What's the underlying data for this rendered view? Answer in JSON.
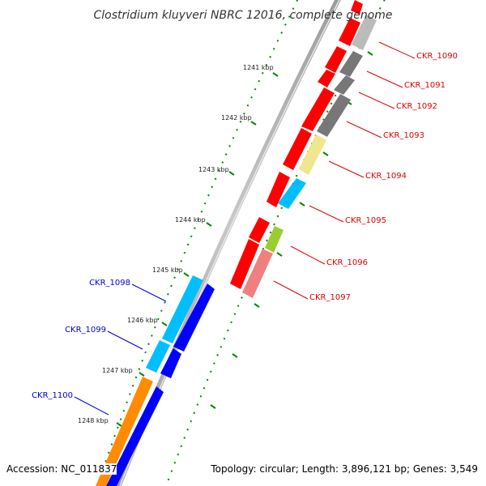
{
  "title": "Clostridium kluyveri NBRC 12016, complete genome",
  "accession": "Accession: NC_011837",
  "topology": "Topology: circular; Length: 3,896,121 bp; Genes: 3,549",
  "colors": {
    "red": "#ff0000",
    "gray": "#777777",
    "light_gray": "#bbbbbb",
    "yellow": "#f0e68c",
    "cyan": "#00bfff",
    "yellow_green": "#9acd32",
    "pink": "#f08080",
    "blue": "#0000ff",
    "orange": "#ff8c00",
    "tick_green": "#008800",
    "label_red": "#e00000",
    "label_blue": "#0000cc"
  },
  "scale_labels": [
    "1241 kbp",
    "1242 kbp",
    "1243 kbp",
    "1244 kbp",
    "1245 kbp",
    "1246 kbp",
    "1247 kbp",
    "1248 kbp"
  ],
  "gene_labels_right": [
    "CKR_1090",
    "CKR_1091",
    "CKR_1092",
    "CKR_1093",
    "CKR_1094",
    "CKR_1095",
    "CKR_1096",
    "CKR_1097"
  ],
  "gene_labels_left": [
    "CKR_1098",
    "CKR_1099",
    "CKR_1100"
  ]
}
